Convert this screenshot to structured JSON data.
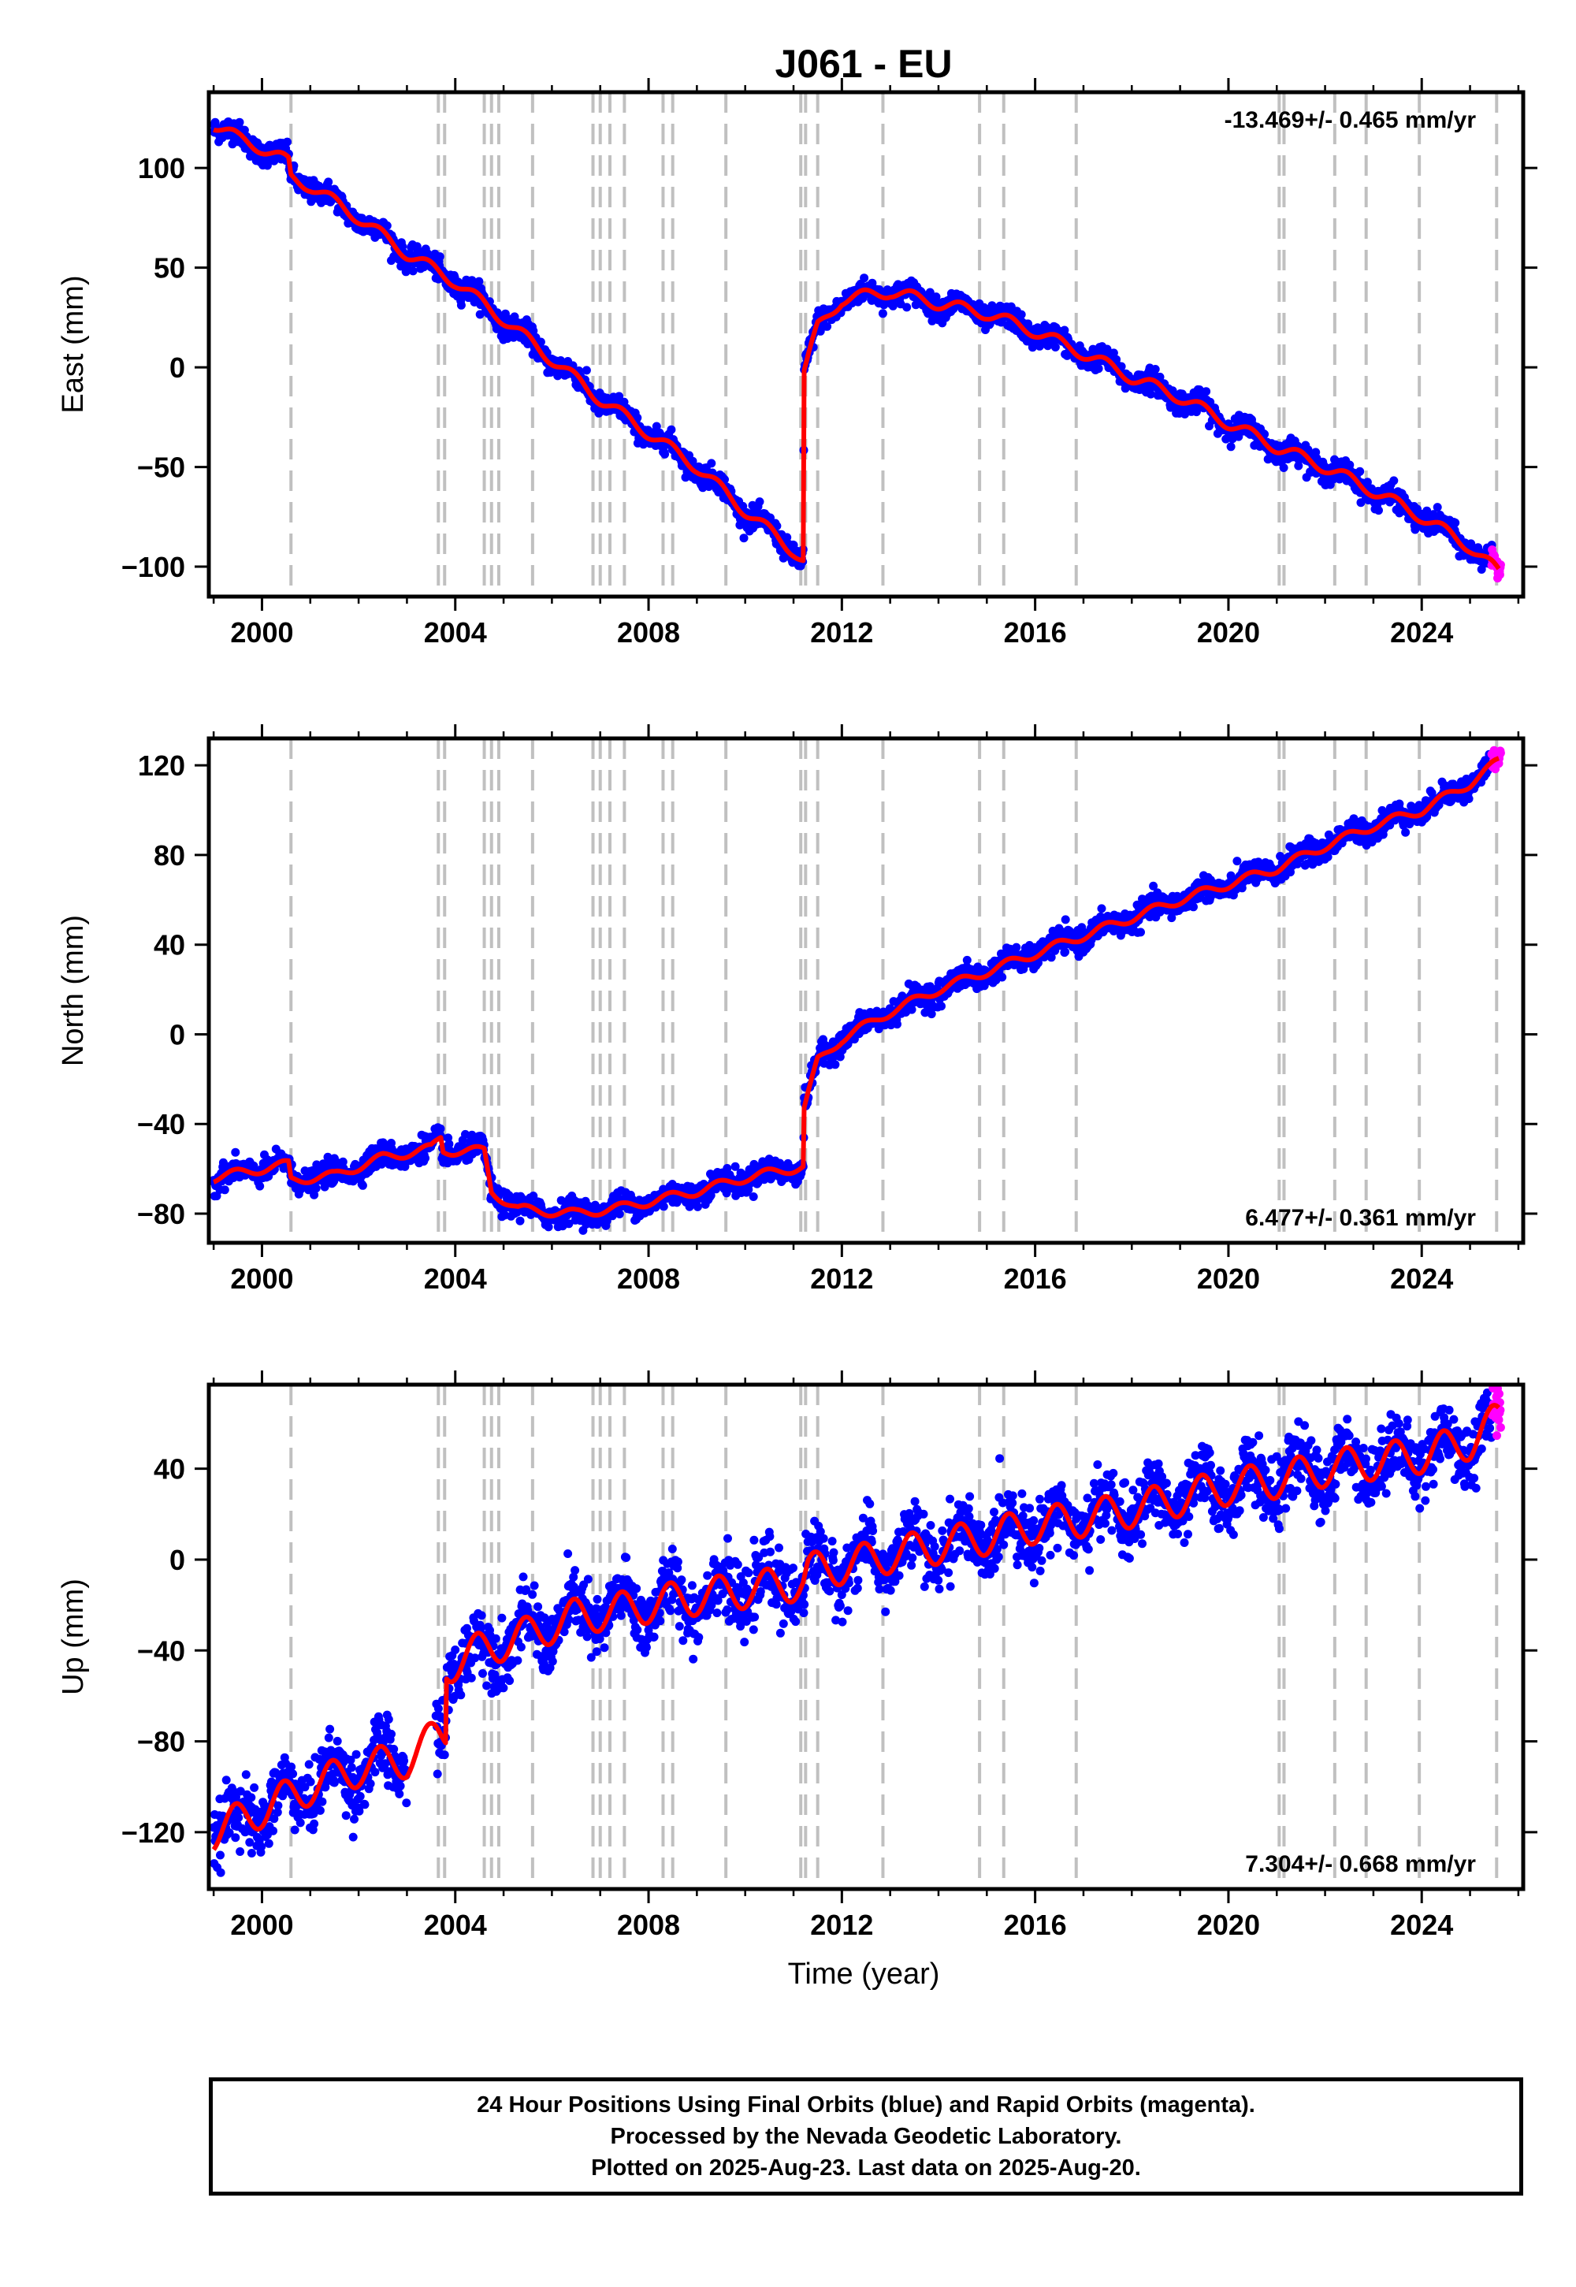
{
  "title": "J061 - EU",
  "xlabel": "Time (year)",
  "footer": {
    "line1": "24 Hour Positions Using Final Orbits (blue) and Rapid Orbits (magenta).",
    "line2": "Processed by the Nevada Geodetic Laboratory.",
    "line3": "Plotted on 2025-Aug-23. Last data on 2025-Aug-20."
  },
  "colors": {
    "final": "#0000ff",
    "rapid": "#ff00ff",
    "model": "#ff0000",
    "event": "#c0c0c0"
  },
  "chart_data": [
    {
      "type": "scatter",
      "ylabel": "East (mm)",
      "rate": "-13.469+/- 0.465 mm/yr",
      "rate_position": "top-right",
      "xlim": [
        1998.9,
        2026.1
      ],
      "ylim": [
        -115,
        138
      ],
      "xticks": [
        2000,
        2004,
        2008,
        2012,
        2016,
        2020,
        2024
      ],
      "yticks": [
        -100,
        -50,
        0,
        50,
        100
      ],
      "ytick_labels": [
        "−100",
        "−50",
        "0",
        "50",
        "100"
      ],
      "scatter_noise": 2.8,
      "model": [
        [
          1999.0,
          122
        ],
        [
          1999.5,
          115
        ],
        [
          2000.0,
          110
        ],
        [
          2000.55,
          103
        ],
        [
          2000.6,
          95
        ],
        [
          2001.0,
          91
        ],
        [
          2002.0,
          75
        ],
        [
          2003.0,
          57
        ],
        [
          2004.0,
          43
        ],
        [
          2005.0,
          24
        ],
        [
          2006.0,
          4
        ],
        [
          2007.0,
          -16
        ],
        [
          2008.0,
          -33
        ],
        [
          2009.0,
          -50
        ],
        [
          2010.0,
          -72
        ],
        [
          2011.0,
          -92
        ],
        [
          2011.2,
          -97
        ],
        [
          2011.22,
          -2
        ],
        [
          2011.5,
          20
        ],
        [
          2012.0,
          34
        ],
        [
          2013.0,
          38
        ],
        [
          2014.0,
          32
        ],
        [
          2015.0,
          27
        ],
        [
          2016.0,
          18
        ],
        [
          2017.0,
          7
        ],
        [
          2018.0,
          -5
        ],
        [
          2019.0,
          -15
        ],
        [
          2020.0,
          -28
        ],
        [
          2021.0,
          -40
        ],
        [
          2022.0,
          -50
        ],
        [
          2023.0,
          -62
        ],
        [
          2024.0,
          -75
        ],
        [
          2025.0,
          -90
        ],
        [
          2025.6,
          -103
        ]
      ],
      "seasonal_amplitude": 3,
      "final_range": [
        [
          1999.0,
          2025.45
        ]
      ],
      "rapid_range": [
        2025.45,
        2025.64
      ]
    },
    {
      "type": "scatter",
      "ylabel": "North (mm)",
      "rate": "6.477+/- 0.361 mm/yr",
      "rate_position": "bottom-right",
      "xlim": [
        1998.9,
        2026.1
      ],
      "ylim": [
        -93,
        132
      ],
      "xticks": [
        2000,
        2004,
        2008,
        2012,
        2016,
        2020,
        2024
      ],
      "yticks": [
        -80,
        -40,
        0,
        40,
        80,
        120
      ],
      "ytick_labels": [
        "−80",
        "−40",
        "0",
        "40",
        "80",
        "120"
      ],
      "scatter_noise": 2.6,
      "model": [
        [
          1999.0,
          -64
        ],
        [
          2000.0,
          -60
        ],
        [
          2000.55,
          -58
        ],
        [
          2000.6,
          -65
        ],
        [
          2001.5,
          -63
        ],
        [
          2002.5,
          -55
        ],
        [
          2003.5,
          -51
        ],
        [
          2003.7,
          -46
        ],
        [
          2003.75,
          -52
        ],
        [
          2004.6,
          -52
        ],
        [
          2004.75,
          -70
        ],
        [
          2005.3,
          -78
        ],
        [
          2006.5,
          -80
        ],
        [
          2007.5,
          -77
        ],
        [
          2009.0,
          -70
        ],
        [
          2010.0,
          -64
        ],
        [
          2011.2,
          -59
        ],
        [
          2011.22,
          -33
        ],
        [
          2011.5,
          -12
        ],
        [
          2012.0,
          -2
        ],
        [
          2013.0,
          10
        ],
        [
          2014.0,
          20
        ],
        [
          2015.0,
          28
        ],
        [
          2016.0,
          36
        ],
        [
          2017.0,
          44
        ],
        [
          2018.0,
          52
        ],
        [
          2019.0,
          60
        ],
        [
          2020.0,
          67
        ],
        [
          2021.0,
          74
        ],
        [
          2022.0,
          84
        ],
        [
          2023.0,
          93
        ],
        [
          2024.0,
          100
        ],
        [
          2025.0,
          112
        ],
        [
          2025.6,
          122
        ]
      ],
      "seasonal_amplitude": 2,
      "final_range": [
        [
          1999.0,
          2025.45
        ]
      ],
      "rapid_range": [
        2025.45,
        2025.64
      ]
    },
    {
      "type": "scatter",
      "ylabel": "Up (mm)",
      "rate": "7.304+/- 0.668 mm/yr",
      "rate_position": "bottom-right",
      "xlim": [
        1998.9,
        2026.1
      ],
      "ylim": [
        -145,
        77
      ],
      "xticks": [
        2000,
        2004,
        2008,
        2012,
        2016,
        2020,
        2024
      ],
      "yticks": [
        -120,
        -80,
        -40,
        0,
        40
      ],
      "ytick_labels": [
        "−120",
        "−80",
        "−40",
        "0",
        "40"
      ],
      "scatter_noise": 7,
      "model": [
        [
          1999.0,
          -120
        ],
        [
          2000.0,
          -110
        ],
        [
          2001.0,
          -100
        ],
        [
          2002.0,
          -92
        ],
        [
          2003.0,
          -88
        ],
        [
          2003.6,
          -78
        ],
        [
          2003.8,
          -76
        ],
        [
          2003.82,
          -47
        ],
        [
          2004.5,
          -40
        ],
        [
          2005.5,
          -33
        ],
        [
          2006.5,
          -25
        ],
        [
          2007.5,
          -22
        ],
        [
          2008.5,
          -18
        ],
        [
          2009.5,
          -15
        ],
        [
          2010.5,
          -12
        ],
        [
          2011.2,
          -10
        ],
        [
          2011.3,
          -5
        ],
        [
          2012.0,
          -3
        ],
        [
          2013.0,
          2
        ],
        [
          2014.0,
          6
        ],
        [
          2015.0,
          10
        ],
        [
          2016.0,
          15
        ],
        [
          2017.0,
          18
        ],
        [
          2018.0,
          22
        ],
        [
          2019.0,
          27
        ],
        [
          2020.0,
          32
        ],
        [
          2021.0,
          35
        ],
        [
          2022.0,
          40
        ],
        [
          2023.0,
          43
        ],
        [
          2024.0,
          46
        ],
        [
          2025.0,
          52
        ],
        [
          2025.6,
          62
        ]
      ],
      "seasonal_amplitude": 8,
      "final_range": [
        [
          1999.0,
          2003.0
        ],
        [
          2003.6,
          2025.45
        ]
      ],
      "rapid_range": [
        2025.45,
        2025.64
      ]
    }
  ],
  "event_lines": [
    2000.6,
    2003.65,
    2003.78,
    2004.6,
    2004.75,
    2004.9,
    2005.6,
    2006.85,
    2007.0,
    2007.2,
    2007.5,
    2008.3,
    2008.5,
    2009.6,
    2011.15,
    2011.25,
    2011.5,
    2012.85,
    2014.85,
    2015.35,
    2016.85,
    2021.05,
    2021.15,
    2022.2,
    2022.85,
    2023.95,
    2025.55
  ]
}
